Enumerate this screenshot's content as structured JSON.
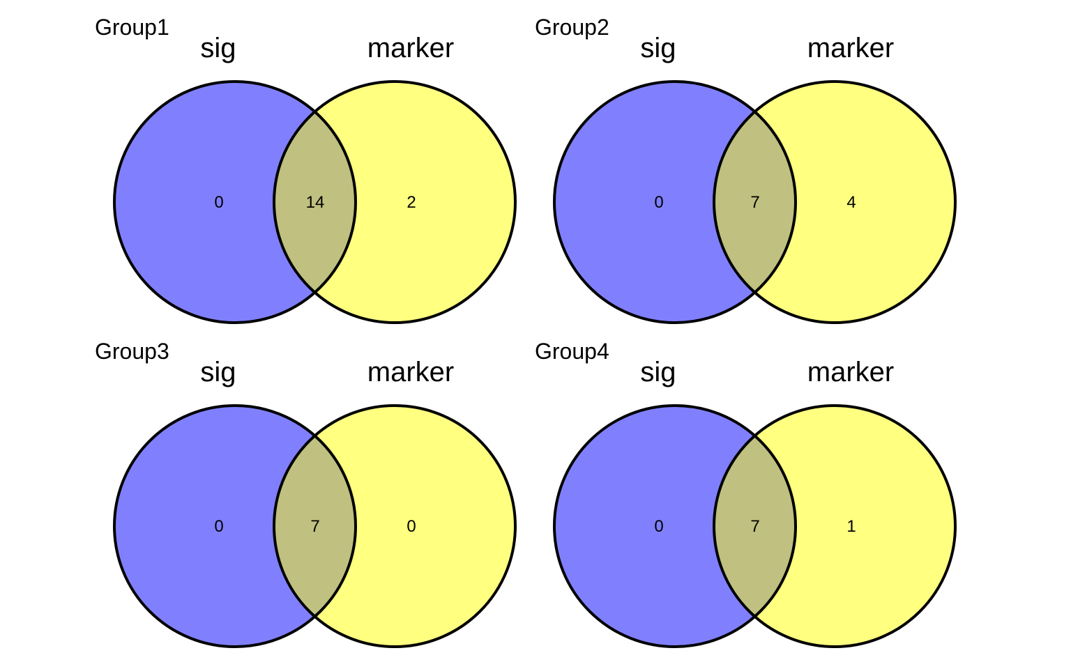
{
  "colors": {
    "left": "#8080ff",
    "right": "#ffff80",
    "overlap": "#c0c080",
    "stroke": "#000000"
  },
  "sets": {
    "left": "sig",
    "right": "marker"
  },
  "panels": [
    {
      "title": "Group1",
      "counts": {
        "left_only": "0",
        "both": "14",
        "right_only": "2"
      }
    },
    {
      "title": "Group2",
      "counts": {
        "left_only": "0",
        "both": "7",
        "right_only": "4"
      }
    },
    {
      "title": "Group3",
      "counts": {
        "left_only": "0",
        "both": "7",
        "right_only": "0"
      }
    },
    {
      "title": "Group4",
      "counts": {
        "left_only": "0",
        "both": "7",
        "right_only": "1"
      }
    }
  ]
}
